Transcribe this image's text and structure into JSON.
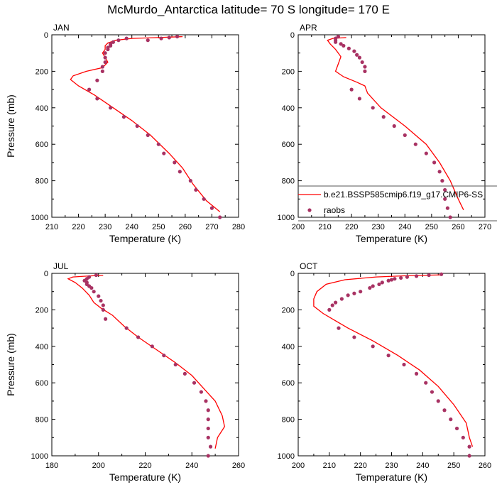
{
  "title": "McMurdo_Antarctica  latitude= 70 S longitude= 170 E",
  "colors": {
    "model": "#ff0000",
    "raobs": "#a83263"
  },
  "legend": {
    "model_label": "b.e21.BSSP585cmip6.f19_g17.CMIP6-SS",
    "obs_label": "raobs"
  },
  "chart_data": [
    {
      "type": "line",
      "panel_label": "JAN",
      "xlabel": "Temperature (K)",
      "ylabel": "Pressure (mb)",
      "xlim": [
        210,
        280
      ],
      "xticks": [
        210,
        220,
        230,
        240,
        250,
        260,
        270,
        280
      ],
      "ylim": [
        1000,
        0
      ],
      "yticks": [
        0,
        200,
        400,
        600,
        800,
        1000
      ],
      "series": [
        {
          "kind": "line",
          "points": [
            [
              259,
              10
            ],
            [
              250,
              15
            ],
            [
              240,
              20
            ],
            [
              234,
              30
            ],
            [
              231,
              45
            ],
            [
              230,
              60
            ],
            [
              230,
              80
            ],
            [
              229,
              100
            ],
            [
              231,
              150
            ],
            [
              229,
              180
            ],
            [
              223,
              200
            ],
            [
              218,
              225
            ],
            [
              217,
              245
            ],
            [
              220,
              280
            ],
            [
              226,
              330
            ],
            [
              233,
              400
            ],
            [
              240,
              470
            ],
            [
              247,
              550
            ],
            [
              254,
              650
            ],
            [
              259,
              730
            ],
            [
              263,
              820
            ],
            [
              268,
              910
            ],
            [
              273,
              970
            ]
          ]
        },
        {
          "kind": "scatter",
          "points": [
            [
              257,
              10
            ],
            [
              254,
              15
            ],
            [
              251,
              20
            ],
            [
              246,
              30
            ],
            [
              238,
              20
            ],
            [
              235,
              30
            ],
            [
              233,
              40
            ],
            [
              232,
              50
            ],
            [
              232,
              60
            ],
            [
              231,
              70
            ],
            [
              231,
              80
            ],
            [
              230,
              100
            ],
            [
              230,
              125
            ],
            [
              230,
              150
            ],
            [
              229,
              175
            ],
            [
              229,
              200
            ],
            [
              227,
              250
            ],
            [
              224,
              300
            ],
            [
              227,
              350
            ],
            [
              232,
              400
            ],
            [
              237,
              450
            ],
            [
              242,
              500
            ],
            [
              246,
              550
            ],
            [
              250,
              600
            ],
            [
              252,
              650
            ],
            [
              256,
              700
            ],
            [
              258,
              750
            ],
            [
              262,
              800
            ],
            [
              264,
              850
            ],
            [
              267,
              900
            ],
            [
              270,
              950
            ],
            [
              273,
              1000
            ]
          ]
        }
      ]
    },
    {
      "type": "line",
      "panel_label": "APR",
      "xlabel": "Temperature (K)",
      "ylabel": "",
      "xlim": [
        200,
        270
      ],
      "xticks": [
        200,
        210,
        220,
        230,
        240,
        250,
        260,
        270
      ],
      "ylim": [
        1000,
        0
      ],
      "yticks": [
        0,
        200,
        400,
        600,
        800,
        1000
      ],
      "series": [
        {
          "kind": "line",
          "points": [
            [
              218,
              15
            ],
            [
              213,
              20
            ],
            [
              211,
              30
            ],
            [
              212,
              50
            ],
            [
              214,
              80
            ],
            [
              216,
              120
            ],
            [
              215,
              160
            ],
            [
              214,
              200
            ],
            [
              217,
              230
            ],
            [
              222,
              260
            ],
            [
              225,
              280
            ],
            [
              226,
              320
            ],
            [
              231,
              400
            ],
            [
              240,
              500
            ],
            [
              248,
              600
            ],
            [
              253,
              700
            ],
            [
              257,
              800
            ],
            [
              260,
              900
            ],
            [
              262,
              960
            ]
          ]
        },
        {
          "kind": "scatter",
          "points": [
            [
              215,
              10
            ],
            [
              214,
              20
            ],
            [
              214,
              30
            ],
            [
              214,
              40
            ],
            [
              216,
              50
            ],
            [
              217,
              60
            ],
            [
              219,
              75
            ],
            [
              221,
              90
            ],
            [
              222,
              110
            ],
            [
              223,
              125
            ],
            [
              224,
              150
            ],
            [
              225,
              175
            ],
            [
              225,
              200
            ],
            [
              220,
              300
            ],
            [
              223,
              350
            ],
            [
              228,
              400
            ],
            [
              232,
              450
            ],
            [
              236,
              500
            ],
            [
              240,
              550
            ],
            [
              244,
              600
            ],
            [
              248,
              650
            ],
            [
              251,
              700
            ],
            [
              253,
              750
            ],
            [
              254,
              800
            ],
            [
              255,
              850
            ],
            [
              255,
              900
            ],
            [
              256,
              950
            ],
            [
              257,
              1000
            ]
          ]
        }
      ]
    },
    {
      "type": "line",
      "panel_label": "JUL",
      "xlabel": "Temperature (K)",
      "ylabel": "Pressure (mb)",
      "xlim": [
        180,
        260
      ],
      "xticks": [
        180,
        200,
        220,
        240,
        260
      ],
      "ylim": [
        1000,
        0
      ],
      "yticks": [
        0,
        200,
        400,
        600,
        800,
        1000
      ],
      "series": [
        {
          "kind": "line",
          "points": [
            [
              202,
              10
            ],
            [
              195,
              15
            ],
            [
              189,
              20
            ],
            [
              187,
              30
            ],
            [
              190,
              50
            ],
            [
              193,
              80
            ],
            [
              196,
              120
            ],
            [
              198,
              160
            ],
            [
              201,
              190
            ],
            [
              206,
              230
            ],
            [
              211,
              290
            ],
            [
              217,
              350
            ],
            [
              225,
              420
            ],
            [
              233,
              490
            ],
            [
              240,
              560
            ],
            [
              245,
              630
            ],
            [
              250,
              700
            ],
            [
              253,
              780
            ],
            [
              254,
              840
            ],
            [
              251,
              900
            ],
            [
              250,
              960
            ]
          ]
        },
        {
          "kind": "scatter",
          "points": [
            [
              199,
              10
            ],
            [
              196,
              20
            ],
            [
              195,
              30
            ],
            [
              194,
              40
            ],
            [
              195,
              50
            ],
            [
              195,
              60
            ],
            [
              196,
              70
            ],
            [
              197,
              80
            ],
            [
              198,
              100
            ],
            [
              200,
              125
            ],
            [
              201,
              150
            ],
            [
              202,
              175
            ],
            [
              202,
              200
            ],
            [
              203,
              250
            ],
            [
              212,
              300
            ],
            [
              217,
              350
            ],
            [
              223,
              400
            ],
            [
              228,
              450
            ],
            [
              233,
              500
            ],
            [
              237,
              550
            ],
            [
              241,
              600
            ],
            [
              244,
              650
            ],
            [
              246,
              700
            ],
            [
              247,
              750
            ],
            [
              247,
              800
            ],
            [
              247,
              850
            ],
            [
              247,
              900
            ],
            [
              248,
              950
            ],
            [
              247,
              1000
            ]
          ]
        }
      ]
    },
    {
      "type": "line",
      "panel_label": "OCT",
      "xlabel": "Temperature (K)",
      "ylabel": "",
      "xlim": [
        200,
        260
      ],
      "xticks": [
        200,
        210,
        220,
        230,
        240,
        250,
        260
      ],
      "ylim": [
        1000,
        0
      ],
      "yticks": [
        0,
        200,
        400,
        600,
        800,
        1000
      ],
      "series": [
        {
          "kind": "line",
          "points": [
            [
              246,
              8
            ],
            [
              236,
              12
            ],
            [
              225,
              20
            ],
            [
              215,
              35
            ],
            [
              209,
              60
            ],
            [
              206,
              100
            ],
            [
              205,
              140
            ],
            [
              205,
              180
            ],
            [
              208,
              220
            ],
            [
              212,
              260
            ],
            [
              216,
              300
            ],
            [
              224,
              370
            ],
            [
              232,
              450
            ],
            [
              239,
              530
            ],
            [
              245,
              620
            ],
            [
              250,
              720
            ],
            [
              254,
              820
            ],
            [
              255,
              900
            ],
            [
              256,
              950
            ]
          ]
        },
        {
          "kind": "scatter",
          "points": [
            [
              246,
              5
            ],
            [
              242,
              10
            ],
            [
              238,
              15
            ],
            [
              235,
              20
            ],
            [
              233,
              25
            ],
            [
              231,
              30
            ],
            [
              230,
              35
            ],
            [
              229,
              40
            ],
            [
              227,
              50
            ],
            [
              226,
              60
            ],
            [
              224,
              70
            ],
            [
              223,
              80
            ],
            [
              220,
              100
            ],
            [
              218,
              110
            ],
            [
              216,
              120
            ],
            [
              214,
              140
            ],
            [
              212,
              160
            ],
            [
              211,
              175
            ],
            [
              210,
              200
            ],
            [
              213,
              300
            ],
            [
              218,
              350
            ],
            [
              224,
              400
            ],
            [
              229,
              450
            ],
            [
              234,
              500
            ],
            [
              238,
              550
            ],
            [
              241,
              600
            ],
            [
              243,
              650
            ],
            [
              245,
              700
            ],
            [
              247,
              750
            ],
            [
              249,
              800
            ],
            [
              251,
              850
            ],
            [
              253,
              900
            ],
            [
              255,
              950
            ],
            [
              255,
              1000
            ]
          ]
        }
      ]
    }
  ]
}
